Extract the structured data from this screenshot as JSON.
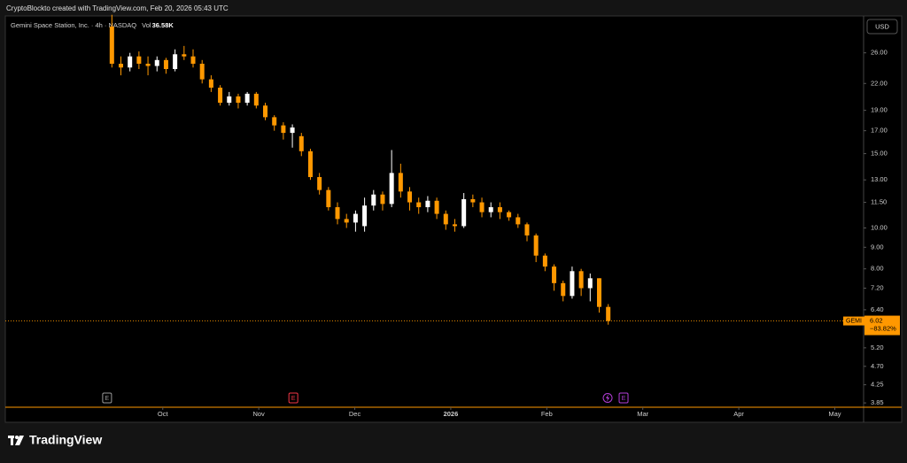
{
  "header": {
    "text": "CryptoBlockto created with TradingView.com, Feb 20, 2026 05:43 UTC"
  },
  "footer": {
    "brand": "TradingView"
  },
  "chart_data": {
    "type": "candlestick",
    "title": "Gemini Space Station, Inc. · 4h · NASDAQ",
    "volume_prefix": "Vol",
    "volume": {
      "value": 36580,
      "label": "36.58K"
    },
    "currency": "USD",
    "log_scale": true,
    "up_color": "#ffffff",
    "down_color": "#ff9800",
    "x": [
      9.47,
      9.564,
      9.658,
      9.752,
      9.846,
      9.94,
      10.034,
      10.128,
      10.222,
      10.316,
      10.41,
      10.504,
      10.598,
      10.692,
      10.786,
      10.88,
      10.974,
      11.068,
      11.162,
      11.256,
      11.35,
      11.444,
      11.538,
      11.632,
      11.726,
      11.82,
      11.914,
      12.008,
      12.102,
      12.196,
      12.29,
      12.384,
      12.478,
      12.572,
      12.666,
      12.76,
      12.854,
      12.948,
      13.042,
      13.136,
      13.23,
      13.324,
      13.418,
      13.512,
      13.606,
      13.7,
      13.794,
      13.888,
      13.982,
      14.076,
      14.17,
      14.264,
      14.358,
      14.452,
      14.546,
      14.64
    ],
    "open": [
      30,
      24.5,
      24,
      25.5,
      24.5,
      24.2,
      25,
      23.8,
      25.8,
      25.5,
      24.5,
      22.5,
      21.5,
      19.8,
      20.5,
      19.8,
      20.8,
      19.5,
      18.3,
      17.5,
      16.8,
      16.5,
      15.2,
      13.2,
      12.3,
      11.2,
      10.5,
      10.3,
      10.1,
      11.3,
      12,
      11.4,
      13.5,
      12.2,
      11.5,
      11.2,
      11.6,
      10.8,
      10.2,
      10.1,
      11.7,
      11.5,
      10.9,
      11.2,
      10.9,
      10.6,
      10.2,
      9.6,
      8.6,
      8.1,
      7.4,
      6.9,
      7.9,
      7.2,
      7.6,
      6.5
    ],
    "high": [
      32,
      25.5,
      26,
      26.2,
      25.5,
      25.5,
      25.3,
      26.5,
      27,
      26.5,
      25,
      23,
      21.8,
      21,
      20.8,
      21,
      21,
      19.8,
      18.5,
      17.8,
      17.6,
      16.8,
      15.4,
      13.5,
      12.5,
      11.5,
      10.8,
      11,
      11.8,
      12.3,
      12.2,
      15.3,
      14.2,
      12.5,
      11.8,
      11.9,
      11.8,
      11,
      10.5,
      12.1,
      12,
      11.8,
      11.5,
      11.5,
      11,
      10.8,
      10.3,
      9.7,
      8.7,
      8.2,
      7.5,
      8.1,
      8,
      7.8,
      7.6,
      6.6
    ],
    "low": [
      24,
      23,
      23.5,
      23.8,
      23,
      23.5,
      23.2,
      23.5,
      25,
      24,
      22,
      21,
      19.5,
      19.5,
      19.2,
      19.5,
      19.2,
      18,
      17,
      16.2,
      15.5,
      14.8,
      13,
      12,
      11,
      10.2,
      10,
      9.8,
      9.8,
      11,
      11,
      11.2,
      11.8,
      11,
      10.8,
      10.9,
      10.5,
      9.9,
      9.8,
      10,
      11.2,
      10.6,
      10.6,
      10.5,
      10.4,
      10,
      9.3,
      8.3,
      7.9,
      7.1,
      6.7,
      6.8,
      6.9,
      6.7,
      6.3,
      5.9
    ],
    "close": [
      24.5,
      24,
      25.5,
      24.5,
      24.2,
      25,
      23.8,
      25.8,
      25.5,
      24.5,
      22.5,
      21.5,
      19.8,
      20.5,
      19.8,
      20.8,
      19.5,
      18.3,
      17.5,
      16.8,
      17.3,
      15.2,
      13.2,
      12.3,
      11.2,
      10.5,
      10.3,
      10.8,
      11.3,
      12,
      11.4,
      13.5,
      12.2,
      11.5,
      11.2,
      11.6,
      10.8,
      10.2,
      10.1,
      11.7,
      11.5,
      10.9,
      11.2,
      10.9,
      10.6,
      10.2,
      9.6,
      8.6,
      8.1,
      7.4,
      6.9,
      7.9,
      7.2,
      7.6,
      6.5,
      6.02
    ],
    "last_price": {
      "symbol": "GEMI",
      "value": 6.02,
      "change_label": "−83.82%"
    },
    "xlim": [
      8.36,
      17.3
    ],
    "xticks": [
      {
        "value": 10,
        "label": "Oct"
      },
      {
        "value": 11,
        "label": "Nov"
      },
      {
        "value": 12,
        "label": "Dec"
      },
      {
        "value": 13,
        "label": "2026"
      },
      {
        "value": 14,
        "label": "Feb"
      },
      {
        "value": 15,
        "label": "Mar"
      },
      {
        "value": 16,
        "label": "Apr"
      },
      {
        "value": 17,
        "label": "May"
      }
    ],
    "ylim": [
      3.76,
      31.8
    ],
    "yticks": [
      {
        "value": 26,
        "label": "26.00"
      },
      {
        "value": 22,
        "label": "22.00"
      },
      {
        "value": 19,
        "label": "19.00"
      },
      {
        "value": 17,
        "label": "17.00"
      },
      {
        "value": 15,
        "label": "15.00"
      },
      {
        "value": 13,
        "label": "13.00"
      },
      {
        "value": 11.5,
        "label": "11.50"
      },
      {
        "value": 10,
        "label": "10.00"
      },
      {
        "value": 9,
        "label": "9.00"
      },
      {
        "value": 8,
        "label": "8.00"
      },
      {
        "value": 7.2,
        "label": "7.20"
      },
      {
        "value": 6.4,
        "label": "6.40"
      },
      {
        "value": 5.2,
        "label": "5.20"
      },
      {
        "value": 4.7,
        "label": "4.70"
      },
      {
        "value": 4.25,
        "label": "4.25"
      },
      {
        "value": 3.85,
        "label": "3.85"
      }
    ],
    "events": [
      {
        "x": 9.42,
        "label": "E",
        "color": "#9a9a9a"
      },
      {
        "x": 11.36,
        "label": "E",
        "color": "#f23645"
      },
      {
        "x": 14.8,
        "label": "E",
        "color": "#b33ed8"
      }
    ]
  }
}
